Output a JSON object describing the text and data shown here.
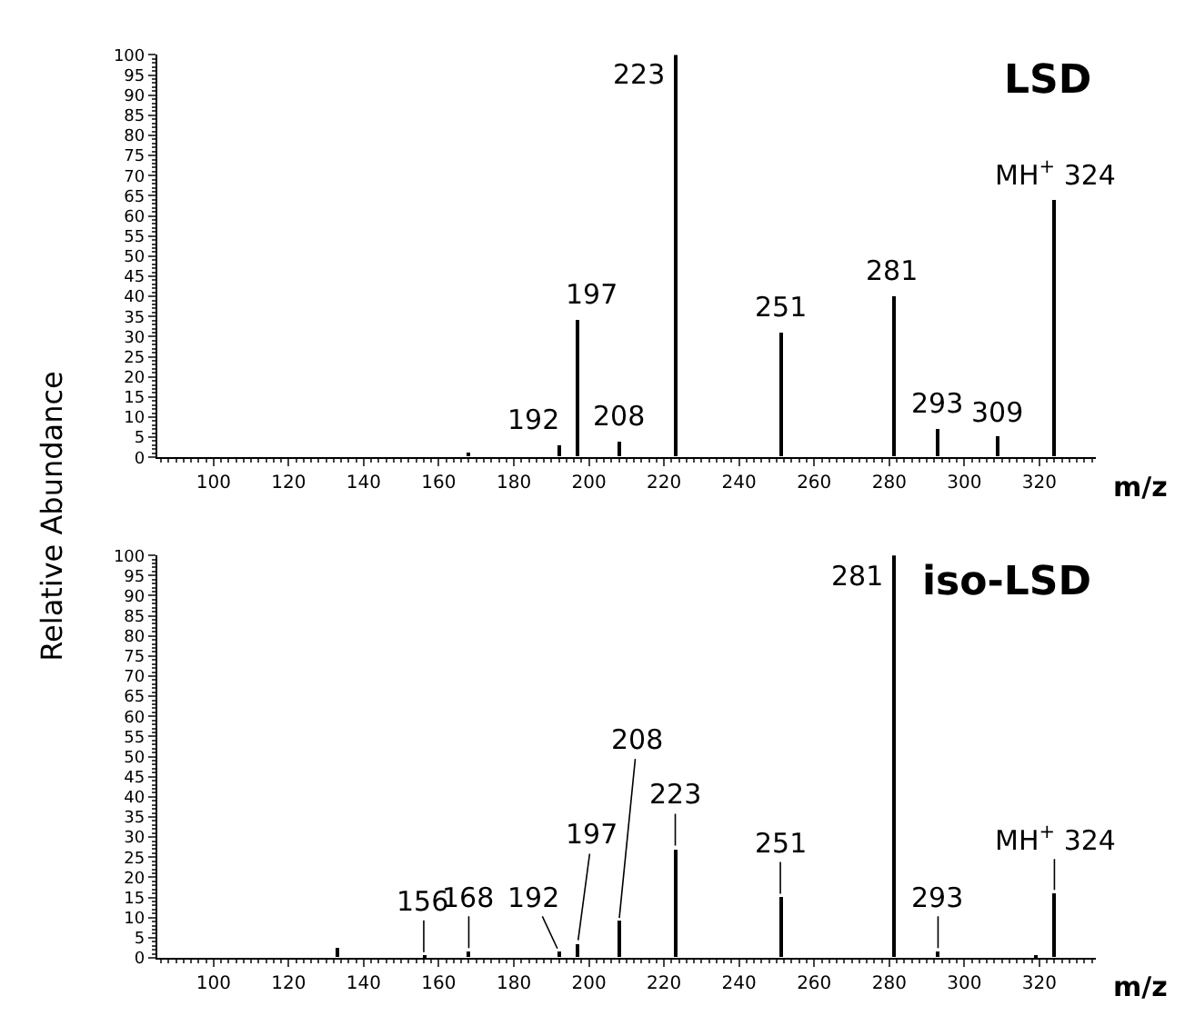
{
  "chart_data": [
    {
      "type": "bar",
      "title": "LSD",
      "ylabel": "Relative Abundance",
      "xlabel": "m/z",
      "x": [
        168,
        192,
        197,
        208,
        223,
        251,
        281,
        293,
        309,
        324
      ],
      "series": [
        {
          "color": "#000000",
          "values": [
            1,
            3,
            34,
            4,
            100,
            31,
            40,
            7,
            5,
            64
          ]
        }
      ],
      "xlim": [
        85,
        335
      ],
      "xticks": [
        100,
        120,
        140,
        160,
        180,
        200,
        220,
        240,
        260,
        280,
        300,
        320
      ],
      "ylim": [
        0,
        100
      ],
      "yticks": [
        0,
        5,
        10,
        15,
        20,
        25,
        30,
        35,
        40,
        45,
        50,
        55,
        60,
        65,
        70,
        75,
        80,
        85,
        90,
        95,
        100
      ],
      "annotations": [
        {
          "text": "192",
          "x": 192,
          "y": 3
        },
        {
          "text": "197",
          "x": 197,
          "y": 34
        },
        {
          "text": "208",
          "x": 208,
          "y": 4
        },
        {
          "text": "223",
          "x": 223,
          "y": 100
        },
        {
          "text": "251",
          "x": 251,
          "y": 31
        },
        {
          "text": "281",
          "x": 281,
          "y": 40
        },
        {
          "text": "293",
          "x": 293,
          "y": 7
        },
        {
          "text": "309",
          "x": 309,
          "y": 5
        },
        {
          "text": "MH$^{+}$ 324",
          "x": 324,
          "y": 64
        }
      ]
    },
    {
      "type": "bar",
      "title": "iso-LSD",
      "xlabel": "m/z",
      "x": [
        133,
        156,
        168,
        192,
        197,
        208,
        223,
        251,
        281,
        293,
        319,
        324
      ],
      "series": [
        {
          "color": "#000000",
          "values": [
            2.5,
            0.5,
            1.5,
            1.5,
            3.5,
            9,
            27,
            15,
            100,
            1.5,
            0.8,
            16
          ]
        }
      ],
      "xlim": [
        85,
        335
      ],
      "xticks": [
        100,
        120,
        140,
        160,
        180,
        200,
        220,
        240,
        260,
        280,
        300,
        320
      ],
      "ylim": [
        0,
        100
      ],
      "yticks": [
        0,
        5,
        10,
        15,
        20,
        25,
        30,
        35,
        40,
        45,
        50,
        55,
        60,
        65,
        70,
        75,
        80,
        85,
        90,
        95,
        100
      ],
      "annotations": [
        {
          "text": "156",
          "x": 156,
          "y": 0.5
        },
        {
          "text": "168",
          "x": 168,
          "y": 1.5
        },
        {
          "text": "192",
          "x": 192,
          "y": 1.5
        },
        {
          "text": "197",
          "x": 197,
          "y": 3.5
        },
        {
          "text": "208",
          "x": 208,
          "y": 9
        },
        {
          "text": "223",
          "x": 223,
          "y": 27
        },
        {
          "text": "251",
          "x": 251,
          "y": 15
        },
        {
          "text": "281",
          "x": 281,
          "y": 100
        },
        {
          "text": "293",
          "x": 293,
          "y": 1.5
        },
        {
          "text": "MH$^{+}$ 324",
          "x": 324,
          "y": 16
        }
      ]
    }
  ]
}
